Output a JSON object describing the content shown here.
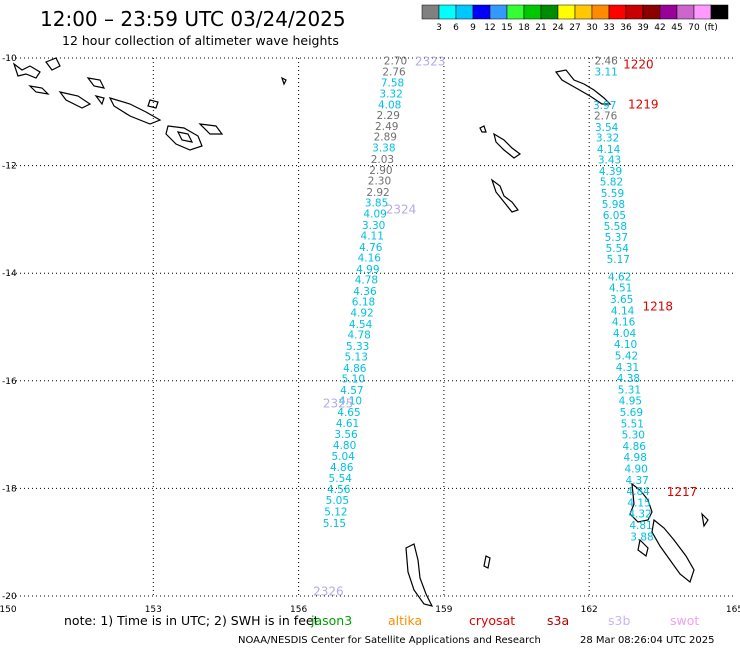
{
  "header": {
    "title": "12:00 – 23:59 UTC 03/24/2025",
    "subtitle": "12 hour collection of altimeter wave heights"
  },
  "colorbar": {
    "colors": [
      "#808080",
      "#00ffff",
      "#00c8ff",
      "#0000ff",
      "#3399ff",
      "#33ff33",
      "#00c800",
      "#008c00",
      "#ffff00",
      "#ffc800",
      "#ff8c00",
      "#ff0000",
      "#c80000",
      "#8c0000",
      "#990099",
      "#cc66cc",
      "#ff99ff",
      "#000000"
    ],
    "labels": [
      "3",
      "6",
      "9",
      "12",
      "15",
      "18",
      "21",
      "24",
      "27",
      "30",
      "33",
      "36",
      "39",
      "42",
      "45",
      "70",
      "(ft)"
    ]
  },
  "axes": {
    "lon_ticks": [
      "150",
      "153",
      "156",
      "159",
      "162",
      "165"
    ],
    "lat_ticks": [
      "-10",
      "-12",
      "-14",
      "-16",
      "-18",
      "-20"
    ]
  },
  "passes": [
    {
      "id": "2323",
      "color": "#b8a8e8",
      "lat": -10.05,
      "lon": 158.4
    },
    {
      "id": "2324",
      "color": "#b8a8e8",
      "lat": -12.8,
      "lon": 157.8
    },
    {
      "id": "2325",
      "color": "#b8a8e8",
      "lat": -16.4,
      "lon": 156.5
    },
    {
      "id": "2326",
      "color": "#b8a8e8",
      "lat": -19.9,
      "lon": 156.3
    },
    {
      "id": "1220",
      "color": "#e00000",
      "lat": -10.1,
      "lon": 162.7
    },
    {
      "id": "1219",
      "color": "#e00000",
      "lat": -10.85,
      "lon": 162.8
    },
    {
      "id": "1218",
      "color": "#e00000",
      "lat": -14.6,
      "lon": 163.1
    },
    {
      "id": "1217",
      "color": "#e00000",
      "lat": -18.05,
      "lon": 163.6
    }
  ],
  "tracks": [
    {
      "points": [
        {
          "lat": -10.05,
          "lon": 158.0,
          "v": "2.70",
          "c": "#707070"
        },
        {
          "lat": -10.25,
          "lon": 157.97,
          "v": "2.76",
          "c": "#707070"
        },
        {
          "lat": -10.46,
          "lon": 157.94,
          "v": "7.58",
          "c": "#00c0e0"
        },
        {
          "lat": -10.66,
          "lon": 157.91,
          "v": "3.32",
          "c": "#00c0e0"
        },
        {
          "lat": -10.86,
          "lon": 157.88,
          "v": "4.08",
          "c": "#00c0e0"
        },
        {
          "lat": -11.06,
          "lon": 157.85,
          "v": "2.29",
          "c": "#707070"
        },
        {
          "lat": -11.26,
          "lon": 157.82,
          "v": "2.49",
          "c": "#707070"
        },
        {
          "lat": -11.46,
          "lon": 157.79,
          "v": "2.89",
          "c": "#707070"
        },
        {
          "lat": -11.66,
          "lon": 157.76,
          "v": "3.38",
          "c": "#00c0e0"
        },
        {
          "lat": -11.88,
          "lon": 157.73,
          "v": "2.03",
          "c": "#707070"
        },
        {
          "lat": -12.08,
          "lon": 157.7,
          "v": "2.90",
          "c": "#707070"
        },
        {
          "lat": -12.28,
          "lon": 157.67,
          "v": "2.30",
          "c": "#707070"
        },
        {
          "lat": -12.49,
          "lon": 157.64,
          "v": "2.92",
          "c": "#707070"
        },
        {
          "lat": -12.69,
          "lon": 157.61,
          "v": "3.85",
          "c": "#00c0e0"
        },
        {
          "lat": -12.89,
          "lon": 157.58,
          "v": "4.09",
          "c": "#00c0e0"
        },
        {
          "lat": -13.1,
          "lon": 157.55,
          "v": "3.30",
          "c": "#00c0e0"
        },
        {
          "lat": -13.3,
          "lon": 157.52,
          "v": "4.11",
          "c": "#00c0e0"
        },
        {
          "lat": -13.51,
          "lon": 157.49,
          "v": "4.76",
          "c": "#00c0e0"
        },
        {
          "lat": -13.71,
          "lon": 157.46,
          "v": "4.16",
          "c": "#00c0e0"
        },
        {
          "lat": -13.92,
          "lon": 157.43,
          "v": "4.99",
          "c": "#00c0e0"
        },
        {
          "lat": -14.12,
          "lon": 157.4,
          "v": "4.78",
          "c": "#00c0e0"
        },
        {
          "lat": -14.33,
          "lon": 157.37,
          "v": "4.36",
          "c": "#00c0e0"
        },
        {
          "lat": -14.53,
          "lon": 157.34,
          "v": "6.18",
          "c": "#00c0e0"
        },
        {
          "lat": -14.73,
          "lon": 157.31,
          "v": "4.92",
          "c": "#00c0e0"
        },
        {
          "lat": -14.94,
          "lon": 157.28,
          "v": "4.54",
          "c": "#00c0e0"
        },
        {
          "lat": -15.14,
          "lon": 157.25,
          "v": "4.78",
          "c": "#00c0e0"
        },
        {
          "lat": -15.35,
          "lon": 157.22,
          "v": "5.33",
          "c": "#00c0e0"
        },
        {
          "lat": -15.55,
          "lon": 157.19,
          "v": "5.13",
          "c": "#00c0e0"
        },
        {
          "lat": -15.76,
          "lon": 157.16,
          "v": "4.86",
          "c": "#00c0e0"
        },
        {
          "lat": -15.96,
          "lon": 157.13,
          "v": "5.10",
          "c": "#00c0e0"
        },
        {
          "lat": -16.17,
          "lon": 157.1,
          "v": "4.57",
          "c": "#00c0e0"
        },
        {
          "lat": -16.37,
          "lon": 157.07,
          "v": "4.10",
          "c": "#00c0e0"
        },
        {
          "lat": -16.58,
          "lon": 157.04,
          "v": "4.65",
          "c": "#00c0e0"
        },
        {
          "lat": -16.78,
          "lon": 157.01,
          "v": "4.61",
          "c": "#00c0e0"
        },
        {
          "lat": -16.99,
          "lon": 156.98,
          "v": "3.56",
          "c": "#00c0e0"
        },
        {
          "lat": -17.19,
          "lon": 156.95,
          "v": "4.80",
          "c": "#00c0e0"
        },
        {
          "lat": -17.4,
          "lon": 156.92,
          "v": "5.04",
          "c": "#00c0e0"
        },
        {
          "lat": -17.6,
          "lon": 156.89,
          "v": "4.86",
          "c": "#00c0e0"
        },
        {
          "lat": -17.81,
          "lon": 156.86,
          "v": "5.54",
          "c": "#00c0e0"
        },
        {
          "lat": -18.01,
          "lon": 156.83,
          "v": "4.56",
          "c": "#00c0e0"
        },
        {
          "lat": -18.22,
          "lon": 156.8,
          "v": "5.05",
          "c": "#00c0e0"
        },
        {
          "lat": -18.43,
          "lon": 156.77,
          "v": "5.12",
          "c": "#00c0e0"
        },
        {
          "lat": -18.64,
          "lon": 156.74,
          "v": "5.15",
          "c": "#00c0e0"
        }
      ]
    },
    {
      "points": [
        {
          "lat": -10.05,
          "lon": 162.35,
          "v": "2.46",
          "c": "#707070"
        },
        {
          "lat": -10.25,
          "lon": 162.35,
          "v": "3.11",
          "c": "#00c0e0"
        },
        {
          "lat": -10.87,
          "lon": 162.32,
          "v": "3.97",
          "c": "#00c0e0"
        },
        {
          "lat": -11.07,
          "lon": 162.34,
          "v": "2.76",
          "c": "#707070"
        },
        {
          "lat": -11.28,
          "lon": 162.36,
          "v": "3.54",
          "c": "#00c0e0"
        },
        {
          "lat": -11.48,
          "lon": 162.38,
          "v": "3.32",
          "c": "#00c0e0"
        },
        {
          "lat": -11.69,
          "lon": 162.4,
          "v": "4.14",
          "c": "#00c0e0"
        },
        {
          "lat": -11.89,
          "lon": 162.42,
          "v": "3.43",
          "c": "#00c0e0"
        },
        {
          "lat": -12.1,
          "lon": 162.44,
          "v": "4.39",
          "c": "#00c0e0"
        },
        {
          "lat": -12.3,
          "lon": 162.46,
          "v": "5.82",
          "c": "#00c0e0"
        },
        {
          "lat": -12.51,
          "lon": 162.48,
          "v": "5.59",
          "c": "#00c0e0"
        },
        {
          "lat": -12.71,
          "lon": 162.5,
          "v": "5.98",
          "c": "#00c0e0"
        },
        {
          "lat": -12.92,
          "lon": 162.52,
          "v": "6.05",
          "c": "#00c0e0"
        },
        {
          "lat": -13.12,
          "lon": 162.54,
          "v": "5.58",
          "c": "#00c0e0"
        },
        {
          "lat": -13.33,
          "lon": 162.56,
          "v": "5.37",
          "c": "#00c0e0"
        },
        {
          "lat": -13.53,
          "lon": 162.58,
          "v": "5.54",
          "c": "#00c0e0"
        },
        {
          "lat": -13.74,
          "lon": 162.6,
          "v": "5.17",
          "c": "#00c0e0"
        },
        {
          "lat": -14.06,
          "lon": 162.63,
          "v": "4.62",
          "c": "#00c0e0"
        },
        {
          "lat": -14.27,
          "lon": 162.65,
          "v": "4.51",
          "c": "#00c0e0"
        },
        {
          "lat": -14.48,
          "lon": 162.67,
          "v": "3.65",
          "c": "#00c0e0"
        },
        {
          "lat": -14.69,
          "lon": 162.69,
          "v": "4.14",
          "c": "#00c0e0"
        },
        {
          "lat": -14.9,
          "lon": 162.71,
          "v": "4.16",
          "c": "#00c0e0"
        },
        {
          "lat": -15.11,
          "lon": 162.73,
          "v": "4.04",
          "c": "#00c0e0"
        },
        {
          "lat": -15.32,
          "lon": 162.75,
          "v": "4.10",
          "c": "#00c0e0"
        },
        {
          "lat": -15.53,
          "lon": 162.77,
          "v": "5.42",
          "c": "#00c0e0"
        },
        {
          "lat": -15.74,
          "lon": 162.79,
          "v": "4.31",
          "c": "#00c0e0"
        },
        {
          "lat": -15.95,
          "lon": 162.81,
          "v": "4.38",
          "c": "#00c0e0"
        },
        {
          "lat": -16.16,
          "lon": 162.83,
          "v": "5.31",
          "c": "#00c0e0"
        },
        {
          "lat": -16.37,
          "lon": 162.85,
          "v": "4.95",
          "c": "#00c0e0"
        },
        {
          "lat": -16.58,
          "lon": 162.87,
          "v": "5.69",
          "c": "#00c0e0"
        },
        {
          "lat": -16.79,
          "lon": 162.89,
          "v": "5.51",
          "c": "#00c0e0"
        },
        {
          "lat": -17.0,
          "lon": 162.91,
          "v": "5.30",
          "c": "#00c0e0"
        },
        {
          "lat": -17.21,
          "lon": 162.93,
          "v": "4.86",
          "c": "#00c0e0"
        },
        {
          "lat": -17.42,
          "lon": 162.95,
          "v": "4.98",
          "c": "#00c0e0"
        },
        {
          "lat": -17.63,
          "lon": 162.97,
          "v": "4.90",
          "c": "#00c0e0"
        },
        {
          "lat": -17.84,
          "lon": 162.99,
          "v": "4.37",
          "c": "#00c0e0"
        },
        {
          "lat": -18.05,
          "lon": 163.01,
          "v": "4.84",
          "c": "#00c0e0"
        },
        {
          "lat": -18.26,
          "lon": 163.03,
          "v": "4.15",
          "c": "#00c0e0"
        },
        {
          "lat": -18.47,
          "lon": 163.05,
          "v": "4.32",
          "c": "#00c0e0"
        },
        {
          "lat": -18.68,
          "lon": 163.07,
          "v": "4.81",
          "c": "#00c0e0"
        },
        {
          "lat": -18.89,
          "lon": 163.09,
          "v": "3.88",
          "c": "#00c0e0"
        }
      ]
    }
  ],
  "note": {
    "prefix": "note:  1) Time is in UTC; 2) SWH is in feet",
    "missions": [
      {
        "name": "jason3",
        "color": "#00a000"
      },
      {
        "name": "altika",
        "color": "#ff8c00"
      },
      {
        "name": "cryosat",
        "color": "#e00000"
      },
      {
        "name": "s3a",
        "color": "#b00000"
      },
      {
        "name": "s3b",
        "color": "#c8b4f0"
      },
      {
        "name": "swot",
        "color": "#f0a0f0"
      }
    ]
  },
  "footer": {
    "credit": "NOAA/NESDIS Center for Satellite Applications and Research",
    "timestamp": "28 Mar 08:26:04 UTC 2025"
  }
}
